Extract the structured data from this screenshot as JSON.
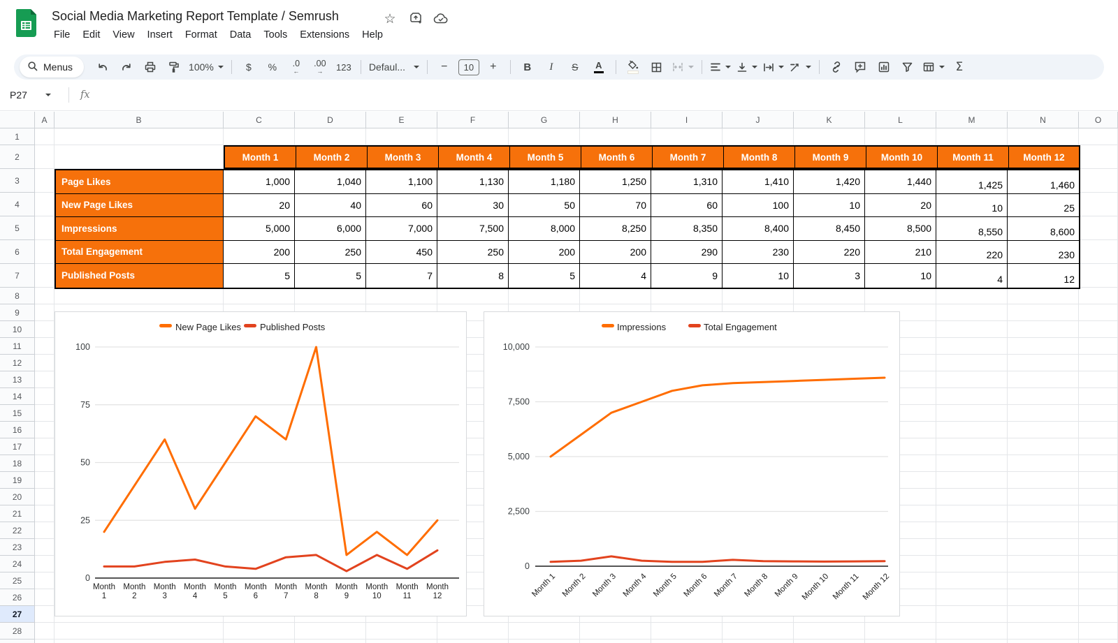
{
  "header": {
    "title": "Social Media Marketing Report Template / Semrush",
    "menus": [
      "File",
      "Edit",
      "View",
      "Insert",
      "Format",
      "Data",
      "Tools",
      "Extensions",
      "Help"
    ]
  },
  "toolbar": {
    "search_label": "Menus",
    "zoom_value": "100%",
    "currency": "$",
    "percent": "%",
    "decrease_decimal": ".0",
    "increase_decimal": ".00",
    "more_formats": "123",
    "font_name": "Defaul...",
    "font_size": "10",
    "minus": "−",
    "plus": "+",
    "bold": "B",
    "italic": "I",
    "strikethrough": "S",
    "text_color": "A",
    "functions": "Σ"
  },
  "formula_bar": {
    "name_box": "P27",
    "fx_label": "fx",
    "value": ""
  },
  "grid": {
    "column_labels": [
      "A",
      "B",
      "C",
      "D",
      "E",
      "F",
      "G",
      "H",
      "I",
      "J",
      "K",
      "L",
      "M",
      "N",
      "O"
    ],
    "row_count": 29,
    "visible_rows": 28,
    "selected_row": 27
  },
  "table": {
    "months": [
      "Month 1",
      "Month 2",
      "Month 3",
      "Month 4",
      "Month 5",
      "Month 6",
      "Month 7",
      "Month 8",
      "Month 9",
      "Month 10",
      "Month 11",
      "Month 12"
    ],
    "rows": [
      {
        "label": "Page Likes",
        "values": [
          "1,000",
          "1,040",
          "1,100",
          "1,130",
          "1,180",
          "1,250",
          "1,310",
          "1,410",
          "1,420",
          "1,440",
          "1,425",
          "1,460"
        ]
      },
      {
        "label": "New Page Likes",
        "values": [
          "20",
          "40",
          "60",
          "30",
          "50",
          "70",
          "60",
          "100",
          "10",
          "20",
          "10",
          "25"
        ]
      },
      {
        "label": "Impressions",
        "values": [
          "5,000",
          "6,000",
          "7,000",
          "7,500",
          "8,000",
          "8,250",
          "8,350",
          "8,400",
          "8,450",
          "8,500",
          "8,550",
          "8,600"
        ]
      },
      {
        "label": "Total Engagement",
        "values": [
          "200",
          "250",
          "450",
          "250",
          "200",
          "200",
          "290",
          "230",
          "220",
          "210",
          "220",
          "230"
        ]
      },
      {
        "label": "Published Posts",
        "values": [
          "5",
          "5",
          "7",
          "8",
          "5",
          "4",
          "9",
          "10",
          "3",
          "10",
          "4",
          "12"
        ]
      }
    ]
  },
  "chart_data": [
    {
      "type": "line",
      "categories": [
        "Month 1",
        "Month 2",
        "Month 3",
        "Month 4",
        "Month 5",
        "Month 6",
        "Month 7",
        "Month 8",
        "Month 9",
        "Month 10",
        "Month 11",
        "Month 12"
      ],
      "series": [
        {
          "name": "New Page Likes",
          "color": "#FF6D01",
          "values": [
            20,
            40,
            60,
            30,
            50,
            70,
            60,
            100,
            10,
            20,
            10,
            25
          ]
        },
        {
          "name": "Published Posts",
          "color": "#E2431E",
          "values": [
            5,
            5,
            7,
            8,
            5,
            4,
            9,
            10,
            3,
            10,
            4,
            12
          ]
        }
      ],
      "title": "",
      "xlabel": "",
      "ylabel": "",
      "ylim": [
        0,
        100
      ],
      "yticks": [
        0,
        25,
        50,
        75,
        100
      ],
      "ytick_labels": [
        "0",
        "25",
        "50",
        "75",
        "100"
      ],
      "legend_position": "top",
      "grid": true,
      "x_label_style": "two-line"
    },
    {
      "type": "line",
      "categories": [
        "Month 1",
        "Month 2",
        "Month 3",
        "Month 4",
        "Month 5",
        "Month 6",
        "Month 7",
        "Month 8",
        "Month 9",
        "Month 10",
        "Month 11",
        "Month 12"
      ],
      "series": [
        {
          "name": "Impressions",
          "color": "#FF6D01",
          "values": [
            5000,
            6000,
            7000,
            7500,
            8000,
            8250,
            8350,
            8400,
            8450,
            8500,
            8550,
            8600
          ]
        },
        {
          "name": "Total Engagement",
          "color": "#E2431E",
          "values": [
            200,
            250,
            450,
            250,
            200,
            200,
            290,
            230,
            220,
            210,
            220,
            230
          ]
        }
      ],
      "title": "",
      "xlabel": "",
      "ylabel": "",
      "ylim": [
        0,
        10000
      ],
      "yticks": [
        0,
        2500,
        5000,
        7500,
        10000
      ],
      "ytick_labels": [
        "0",
        "2,500",
        "5,000",
        "7,500",
        "10,000"
      ],
      "legend_position": "top",
      "grid": true,
      "x_label_style": "angled"
    }
  ],
  "colors": {
    "table_accent_orange": "#F6710B",
    "series_orange": "#FF6D01",
    "series_red": "#E2431E",
    "selected_row_bg": "#DFEAFC",
    "toolbar_bg": "#F0F4F9",
    "logo_green": "#169C53"
  }
}
